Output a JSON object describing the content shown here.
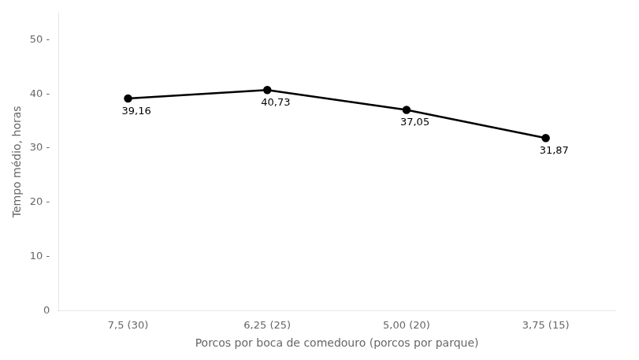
{
  "chart_data": {
    "type": "line",
    "categories": [
      "7,5 (30)",
      "6,25 (25)",
      "5,00 (20)",
      "3,75 (15)"
    ],
    "values": [
      39.16,
      40.73,
      37.05,
      31.87
    ],
    "value_labels": [
      "39,16",
      "40,73",
      "37,05",
      "31,87"
    ],
    "data_labels": true,
    "color": "#000000",
    "marker": "circle",
    "xlabel": "Porcos por boca de comedouro (porcos por parque)",
    "ylabel": "Tempo médio, horas",
    "ylim": [
      0,
      55
    ],
    "yticks": [
      0,
      {
        "value": 10,
        "label": "10 -"
      },
      {
        "value": 20,
        "label": "20 -"
      },
      {
        "value": 30,
        "label": "30 -"
      },
      {
        "value": 40,
        "label": "40 -"
      },
      {
        "value": 50,
        "label": "50 -"
      }
    ],
    "grid": false
  }
}
